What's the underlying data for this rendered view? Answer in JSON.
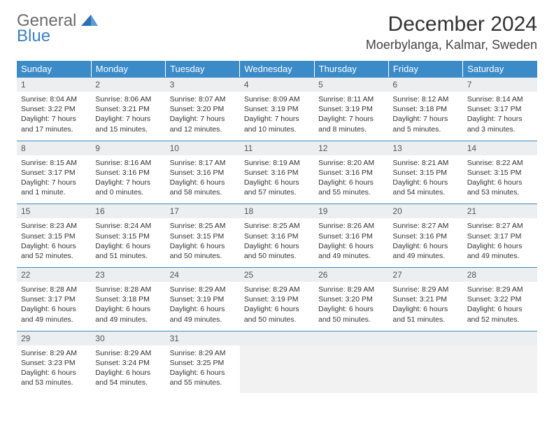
{
  "logo": {
    "general": "General",
    "blue": "Blue"
  },
  "colors": {
    "header_bg": "#3b8bc9",
    "header_text": "#ffffff",
    "daynum_bg": "#eceeef",
    "daynum_border": "#3b8bc9",
    "body_text": "#333333",
    "title_text": "#333333",
    "empty_bg": "#f2f2f2"
  },
  "title": "December 2024",
  "location": "Moerbylanga, Kalmar, Sweden",
  "weekdays": [
    "Sunday",
    "Monday",
    "Tuesday",
    "Wednesday",
    "Thursday",
    "Friday",
    "Saturday"
  ],
  "first_weekday_index": 0,
  "days": [
    {
      "n": 1,
      "sunrise": "8:04 AM",
      "sunset": "3:22 PM",
      "daylight": "7 hours and 17 minutes."
    },
    {
      "n": 2,
      "sunrise": "8:06 AM",
      "sunset": "3:21 PM",
      "daylight": "7 hours and 15 minutes."
    },
    {
      "n": 3,
      "sunrise": "8:07 AM",
      "sunset": "3:20 PM",
      "daylight": "7 hours and 12 minutes."
    },
    {
      "n": 4,
      "sunrise": "8:09 AM",
      "sunset": "3:19 PM",
      "daylight": "7 hours and 10 minutes."
    },
    {
      "n": 5,
      "sunrise": "8:11 AM",
      "sunset": "3:19 PM",
      "daylight": "7 hours and 8 minutes."
    },
    {
      "n": 6,
      "sunrise": "8:12 AM",
      "sunset": "3:18 PM",
      "daylight": "7 hours and 5 minutes."
    },
    {
      "n": 7,
      "sunrise": "8:14 AM",
      "sunset": "3:17 PM",
      "daylight": "7 hours and 3 minutes."
    },
    {
      "n": 8,
      "sunrise": "8:15 AM",
      "sunset": "3:17 PM",
      "daylight": "7 hours and 1 minute."
    },
    {
      "n": 9,
      "sunrise": "8:16 AM",
      "sunset": "3:16 PM",
      "daylight": "7 hours and 0 minutes."
    },
    {
      "n": 10,
      "sunrise": "8:17 AM",
      "sunset": "3:16 PM",
      "daylight": "6 hours and 58 minutes."
    },
    {
      "n": 11,
      "sunrise": "8:19 AM",
      "sunset": "3:16 PM",
      "daylight": "6 hours and 57 minutes."
    },
    {
      "n": 12,
      "sunrise": "8:20 AM",
      "sunset": "3:16 PM",
      "daylight": "6 hours and 55 minutes."
    },
    {
      "n": 13,
      "sunrise": "8:21 AM",
      "sunset": "3:15 PM",
      "daylight": "6 hours and 54 minutes."
    },
    {
      "n": 14,
      "sunrise": "8:22 AM",
      "sunset": "3:15 PM",
      "daylight": "6 hours and 53 minutes."
    },
    {
      "n": 15,
      "sunrise": "8:23 AM",
      "sunset": "3:15 PM",
      "daylight": "6 hours and 52 minutes."
    },
    {
      "n": 16,
      "sunrise": "8:24 AM",
      "sunset": "3:15 PM",
      "daylight": "6 hours and 51 minutes."
    },
    {
      "n": 17,
      "sunrise": "8:25 AM",
      "sunset": "3:15 PM",
      "daylight": "6 hours and 50 minutes."
    },
    {
      "n": 18,
      "sunrise": "8:25 AM",
      "sunset": "3:16 PM",
      "daylight": "6 hours and 50 minutes."
    },
    {
      "n": 19,
      "sunrise": "8:26 AM",
      "sunset": "3:16 PM",
      "daylight": "6 hours and 49 minutes."
    },
    {
      "n": 20,
      "sunrise": "8:27 AM",
      "sunset": "3:16 PM",
      "daylight": "6 hours and 49 minutes."
    },
    {
      "n": 21,
      "sunrise": "8:27 AM",
      "sunset": "3:17 PM",
      "daylight": "6 hours and 49 minutes."
    },
    {
      "n": 22,
      "sunrise": "8:28 AM",
      "sunset": "3:17 PM",
      "daylight": "6 hours and 49 minutes."
    },
    {
      "n": 23,
      "sunrise": "8:28 AM",
      "sunset": "3:18 PM",
      "daylight": "6 hours and 49 minutes."
    },
    {
      "n": 24,
      "sunrise": "8:29 AM",
      "sunset": "3:19 PM",
      "daylight": "6 hours and 49 minutes."
    },
    {
      "n": 25,
      "sunrise": "8:29 AM",
      "sunset": "3:19 PM",
      "daylight": "6 hours and 50 minutes."
    },
    {
      "n": 26,
      "sunrise": "8:29 AM",
      "sunset": "3:20 PM",
      "daylight": "6 hours and 50 minutes."
    },
    {
      "n": 27,
      "sunrise": "8:29 AM",
      "sunset": "3:21 PM",
      "daylight": "6 hours and 51 minutes."
    },
    {
      "n": 28,
      "sunrise": "8:29 AM",
      "sunset": "3:22 PM",
      "daylight": "6 hours and 52 minutes."
    },
    {
      "n": 29,
      "sunrise": "8:29 AM",
      "sunset": "3:23 PM",
      "daylight": "6 hours and 53 minutes."
    },
    {
      "n": 30,
      "sunrise": "8:29 AM",
      "sunset": "3:24 PM",
      "daylight": "6 hours and 54 minutes."
    },
    {
      "n": 31,
      "sunrise": "8:29 AM",
      "sunset": "3:25 PM",
      "daylight": "6 hours and 55 minutes."
    }
  ],
  "labels": {
    "sunrise_prefix": "Sunrise: ",
    "sunset_prefix": "Sunset: ",
    "daylight_prefix": "Daylight: "
  }
}
